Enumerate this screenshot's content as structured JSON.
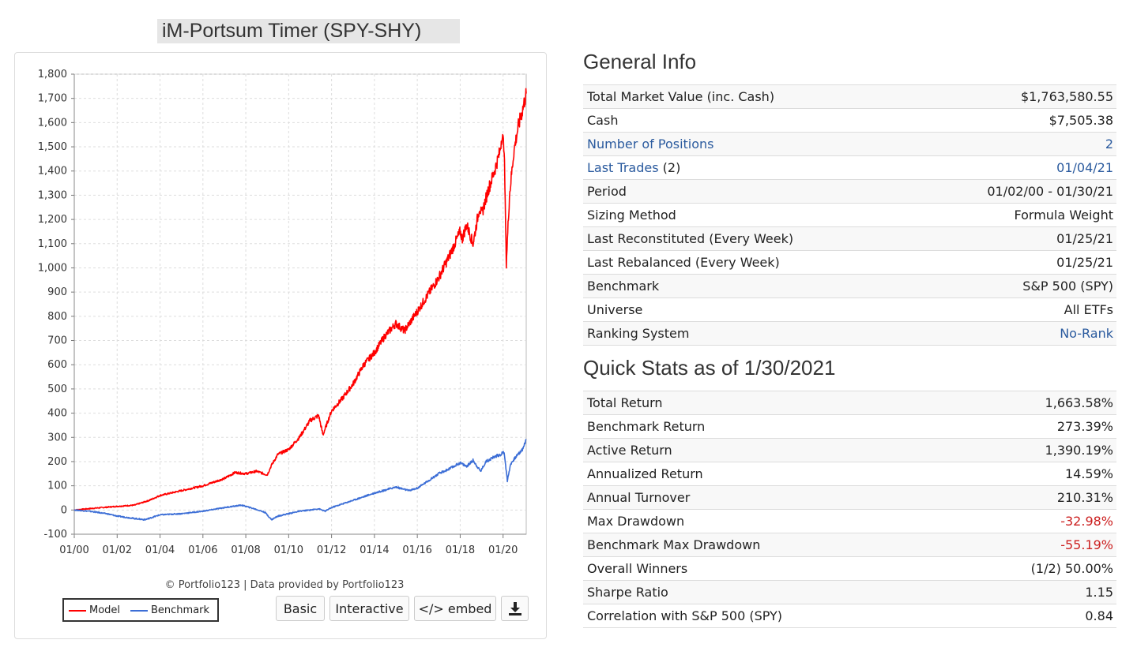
{
  "chart": {
    "title": "iM-Portsum Timer (SPY-SHY)",
    "credit": "© Portfolio123 | Data provided by Portfolio123",
    "legend": [
      {
        "name": "Model",
        "color": "#ff0000"
      },
      {
        "name": "Benchmark",
        "color": "#3c6ed6"
      }
    ],
    "buttons": {
      "basic": "Basic",
      "interactive": "Interactive",
      "embed": "</> embed",
      "download_icon": "download-icon"
    }
  },
  "chart_data": {
    "type": "line",
    "title": "iM-Portsum Timer (SPY-SHY)",
    "xlabel": "",
    "ylabel": "",
    "ylim": [
      -100,
      1800
    ],
    "xlim": [
      2000.0,
      2021.08
    ],
    "yticks": [
      -100,
      0,
      100,
      200,
      300,
      400,
      500,
      600,
      700,
      800,
      900,
      1000,
      1100,
      1200,
      1300,
      1400,
      1500,
      1600,
      1700,
      1800
    ],
    "ytick_labels": [
      "-100",
      "0",
      "100",
      "200",
      "300",
      "400",
      "500",
      "600",
      "700",
      "800",
      "900",
      "1,000",
      "1,100",
      "1,200",
      "1,300",
      "1,400",
      "1,500",
      "1,600",
      "1,700",
      "1,800"
    ],
    "xticks": [
      "01/00",
      "01/02",
      "01/04",
      "01/06",
      "01/08",
      "01/10",
      "01/12",
      "01/14",
      "01/16",
      "01/18",
      "01/20"
    ],
    "grid": true,
    "legend_position": "bottom-left",
    "series": [
      {
        "name": "Model",
        "color": "#ff0000",
        "x": [
          2000.0,
          2001.0,
          2002.0,
          2002.8,
          2003.5,
          2004.0,
          2005.0,
          2006.0,
          2007.0,
          2007.5,
          2008.0,
          2008.5,
          2009.0,
          2009.2,
          2009.5,
          2010.0,
          2010.5,
          2011.0,
          2011.4,
          2011.6,
          2011.8,
          2012.0,
          2012.5,
          2013.0,
          2013.5,
          2014.0,
          2014.5,
          2015.0,
          2015.4,
          2015.7,
          2016.0,
          2016.5,
          2017.0,
          2017.5,
          2018.0,
          2018.1,
          2018.3,
          2018.6,
          2018.9,
          2019.0,
          2019.3,
          2019.6,
          2019.85,
          2019.95,
          2020.05,
          2020.15,
          2020.3,
          2020.5,
          2020.7,
          2020.9,
          2021.08
        ],
        "values": [
          0,
          8,
          15,
          20,
          40,
          60,
          80,
          100,
          130,
          155,
          150,
          160,
          145,
          185,
          230,
          250,
          300,
          370,
          390,
          310,
          360,
          410,
          460,
          520,
          600,
          650,
          720,
          770,
          740,
          780,
          820,
          890,
          960,
          1050,
          1150,
          1120,
          1180,
          1100,
          1250,
          1220,
          1320,
          1400,
          1480,
          1550,
          1500,
          1020,
          1300,
          1480,
          1580,
          1650,
          1720
        ]
      },
      {
        "name": "Benchmark",
        "color": "#3c6ed6",
        "x": [
          2000.0,
          2000.7,
          2001.5,
          2002.0,
          2002.8,
          2003.3,
          2004.0,
          2005.0,
          2006.0,
          2007.0,
          2007.8,
          2008.4,
          2008.9,
          2009.2,
          2009.5,
          2010.0,
          2010.5,
          2011.0,
          2011.4,
          2011.7,
          2012.0,
          2013.0,
          2014.0,
          2015.0,
          2015.6,
          2016.0,
          2016.5,
          2017.0,
          2017.5,
          2018.0,
          2018.3,
          2018.6,
          2018.95,
          2019.2,
          2019.6,
          2019.9,
          2020.05,
          2020.2,
          2020.35,
          2020.6,
          2020.9,
          2021.08
        ],
        "values": [
          0,
          -5,
          -15,
          -25,
          -35,
          -40,
          -20,
          -15,
          -5,
          10,
          20,
          5,
          -10,
          -40,
          -25,
          -15,
          -5,
          0,
          5,
          -5,
          10,
          40,
          70,
          95,
          80,
          90,
          120,
          150,
          170,
          195,
          180,
          205,
          160,
          200,
          220,
          230,
          240,
          120,
          190,
          220,
          250,
          290
        ]
      }
    ]
  },
  "general_info": {
    "title": "General Info",
    "rows": [
      {
        "label": "Total Market Value (inc. Cash)",
        "value": "$1,763,580.55"
      },
      {
        "label": "Cash",
        "value": "$7,505.38"
      },
      {
        "label": "Number of Positions",
        "value": "2",
        "label_link": true,
        "value_link": true
      },
      {
        "label": "Last Trades",
        "label_suffix": " (2)",
        "value": "01/04/21",
        "label_link": true,
        "value_link": true
      },
      {
        "label": "Period",
        "value": "01/02/00 - 01/30/21"
      },
      {
        "label": "Sizing Method",
        "value": "Formula Weight"
      },
      {
        "label": "Last Reconstituted (Every Week)",
        "value": "01/25/21"
      },
      {
        "label": "Last Rebalanced (Every Week)",
        "value": "01/25/21"
      },
      {
        "label": "Benchmark",
        "value": "S&P 500 (SPY)"
      },
      {
        "label": "Universe",
        "value": "All ETFs"
      },
      {
        "label": "Ranking System",
        "value": "No-Rank",
        "value_link": true
      }
    ]
  },
  "quick_stats": {
    "title": "Quick Stats as of 1/30/2021",
    "rows": [
      {
        "label": "Total Return",
        "value": "1,663.58%"
      },
      {
        "label": "Benchmark Return",
        "value": "273.39%"
      },
      {
        "label": "Active Return",
        "value": "1,390.19%"
      },
      {
        "label": "Annualized Return",
        "value": "14.59%"
      },
      {
        "label": "Annual Turnover",
        "value": "210.31%"
      },
      {
        "label": "Max Drawdown",
        "value": "-32.98%",
        "value_negative": true
      },
      {
        "label": "Benchmark Max Drawdown",
        "value": "-55.19%",
        "value_negative": true
      },
      {
        "label": "Overall Winners",
        "value": "(1/2) 50.00%"
      },
      {
        "label": "Sharpe Ratio",
        "value": "1.15"
      },
      {
        "label": "Correlation with S&P 500 (SPY)",
        "value": "0.84"
      }
    ]
  }
}
